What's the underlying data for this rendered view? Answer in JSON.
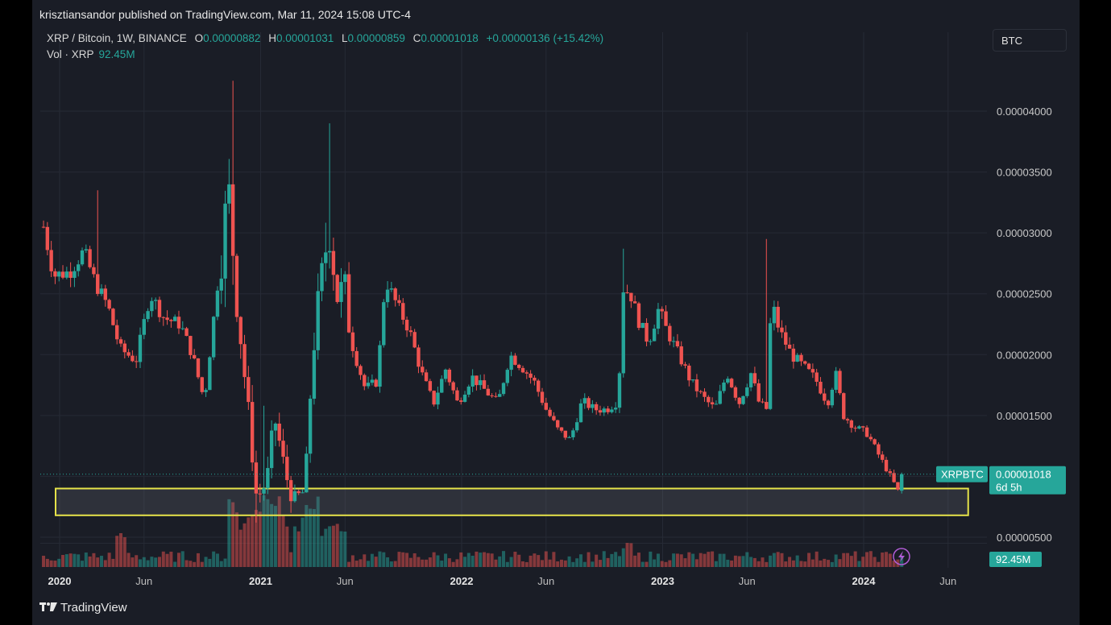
{
  "publisher": "krisztiansandor published on TradingView.com, Mar 11, 2024 15:08 UTC-4",
  "legend": {
    "symbol": "XRP / Bitcoin, 1W, BINANCE",
    "open_label": "O",
    "open": "0.00000882",
    "high_label": "H",
    "high": "0.00001031",
    "low_label": "L",
    "low": "0.00000859",
    "close_label": "C",
    "close": "0.00001018",
    "change": "+0.00000136 (+15.42%)",
    "vol_label": "Vol · XRP",
    "vol_value": "92.45M"
  },
  "currency_button": "BTC",
  "price_tag": {
    "symbol": "XRPBTC",
    "price": "0.00001018",
    "countdown": "6d 5h"
  },
  "volume_tag": "92.45M",
  "footer_logo": "TradingView",
  "colors": {
    "up": "#26a69a",
    "down": "#ef5350",
    "background": "#1a1d26",
    "highlight_box": "#e6e34a"
  },
  "chart_data": {
    "type": "candlestick",
    "interval": "1W",
    "ylim": [
      3e-06,
      4.35e-05
    ],
    "y_ticks": [
      "0.00000500",
      "0.00001500",
      "0.00002000",
      "0.00002500",
      "0.00003000",
      "0.00003500",
      "0.00004000"
    ],
    "x_ticks": [
      {
        "label": "2020",
        "t": 2020.0,
        "bold": true
      },
      {
        "label": "Jun",
        "t": 2020.42,
        "bold": false
      },
      {
        "label": "2021",
        "t": 2021.0,
        "bold": true
      },
      {
        "label": "Jun",
        "t": 2021.42,
        "bold": false
      },
      {
        "label": "2022",
        "t": 2022.0,
        "bold": true
      },
      {
        "label": "Jun",
        "t": 2022.42,
        "bold": false
      },
      {
        "label": "2023",
        "t": 2023.0,
        "bold": true
      },
      {
        "label": "Jun",
        "t": 2023.42,
        "bold": false
      },
      {
        "label": "2024",
        "t": 2024.0,
        "bold": true
      },
      {
        "label": "Jun",
        "t": 2024.42,
        "bold": false
      }
    ],
    "x_range": [
      2019.92,
      2024.7
    ],
    "current_price": 1.018e-05,
    "support_zone": {
      "low": 6.8e-06,
      "high": 9e-06,
      "t_start": 2019.98,
      "t_end": 2024.52
    },
    "close_path": [
      [
        2019.92,
        3.05e-05
      ],
      [
        2019.97,
        2.65e-05
      ],
      [
        2020.05,
        2.68e-05
      ],
      [
        2020.12,
        2.85e-05
      ],
      [
        2020.18,
        2.58e-05
      ],
      [
        2020.24,
        2.4e-05
      ],
      [
        2020.3,
        2.05e-05
      ],
      [
        2020.38,
        1.95e-05
      ],
      [
        2020.45,
        2.5e-05
      ],
      [
        2020.52,
        2.3e-05
      ],
      [
        2020.6,
        2.25e-05
      ],
      [
        2020.66,
        2e-05
      ],
      [
        2020.72,
        1.62e-05
      ],
      [
        2020.78,
        2.5e-05
      ],
      [
        2020.84,
        3.35e-05
      ],
      [
        2020.88,
        2.5e-05
      ],
      [
        2020.94,
        1.5e-05
      ],
      [
        2020.98,
        8.2e-06
      ],
      [
        2021.03,
        9.5e-06
      ],
      [
        2021.07,
        1.48e-05
      ],
      [
        2021.12,
        1.05e-05
      ],
      [
        2021.16,
        8e-06
      ],
      [
        2021.22,
        8.8e-06
      ],
      [
        2021.26,
        2.05e-05
      ],
      [
        2021.3,
        2.55e-05
      ],
      [
        2021.34,
        3.1e-05
      ],
      [
        2021.38,
        2.5e-05
      ],
      [
        2021.42,
        2.5e-05
      ],
      [
        2021.46,
        2.05e-05
      ],
      [
        2021.52,
        1.72e-05
      ],
      [
        2021.58,
        1.78e-05
      ],
      [
        2021.62,
        2.62e-05
      ],
      [
        2021.68,
        2.4e-05
      ],
      [
        2021.74,
        2.2e-05
      ],
      [
        2021.8,
        1.85e-05
      ],
      [
        2021.86,
        1.6e-05
      ],
      [
        2021.92,
        1.88e-05
      ],
      [
        2021.98,
        1.6e-05
      ],
      [
        2022.05,
        1.82e-05
      ],
      [
        2022.12,
        1.7e-05
      ],
      [
        2022.18,
        1.6e-05
      ],
      [
        2022.24,
        2e-05
      ],
      [
        2022.3,
        1.9e-05
      ],
      [
        2022.36,
        1.78e-05
      ],
      [
        2022.42,
        1.55e-05
      ],
      [
        2022.48,
        1.38e-05
      ],
      [
        2022.54,
        1.3e-05
      ],
      [
        2022.6,
        1.62e-05
      ],
      [
        2022.66,
        1.55e-05
      ],
      [
        2022.72,
        1.55e-05
      ],
      [
        2022.78,
        1.62e-05
      ],
      [
        2022.8,
        2.55e-05
      ],
      [
        2022.84,
        2.5e-05
      ],
      [
        2022.88,
        2.28e-05
      ],
      [
        2022.93,
        2.1e-05
      ],
      [
        2022.98,
        2.38e-05
      ],
      [
        2023.02,
        2.2e-05
      ],
      [
        2023.08,
        2e-05
      ],
      [
        2023.14,
        1.78e-05
      ],
      [
        2023.2,
        1.65e-05
      ],
      [
        2023.26,
        1.55e-05
      ],
      [
        2023.32,
        1.85e-05
      ],
      [
        2023.38,
        1.6e-05
      ],
      [
        2023.44,
        1.85e-05
      ],
      [
        2023.48,
        1.6e-05
      ],
      [
        2023.52,
        1.55e-05
      ],
      [
        2023.54,
        2.45e-05
      ],
      [
        2023.58,
        2.2e-05
      ],
      [
        2023.64,
        2e-05
      ],
      [
        2023.7,
        1.9e-05
      ],
      [
        2023.76,
        1.8e-05
      ],
      [
        2023.82,
        1.6e-05
      ],
      [
        2023.86,
        1.85e-05
      ],
      [
        2023.9,
        1.5e-05
      ],
      [
        2023.96,
        1.4e-05
      ],
      [
        2024.02,
        1.35e-05
      ],
      [
        2024.06,
        1.22e-05
      ],
      [
        2024.1,
        1.1e-05
      ],
      [
        2024.14,
        9.8e-06
      ],
      [
        2024.17,
        8.8e-06
      ],
      [
        2024.19,
        1.02e-05
      ]
    ],
    "volume_spikes": [
      [
        2020.86,
        0.95
      ],
      [
        2020.9,
        0.6
      ],
      [
        2020.96,
        0.8
      ],
      [
        2021.0,
        0.9
      ],
      [
        2021.04,
        1.0
      ],
      [
        2021.08,
        0.9
      ],
      [
        2021.12,
        0.7
      ],
      [
        2021.18,
        0.55
      ],
      [
        2021.22,
        0.8
      ],
      [
        2021.27,
        0.9
      ],
      [
        2021.32,
        0.55
      ],
      [
        2021.36,
        0.6
      ],
      [
        2021.4,
        0.5
      ],
      [
        2020.3,
        0.45
      ],
      [
        2022.82,
        0.3
      ]
    ]
  }
}
